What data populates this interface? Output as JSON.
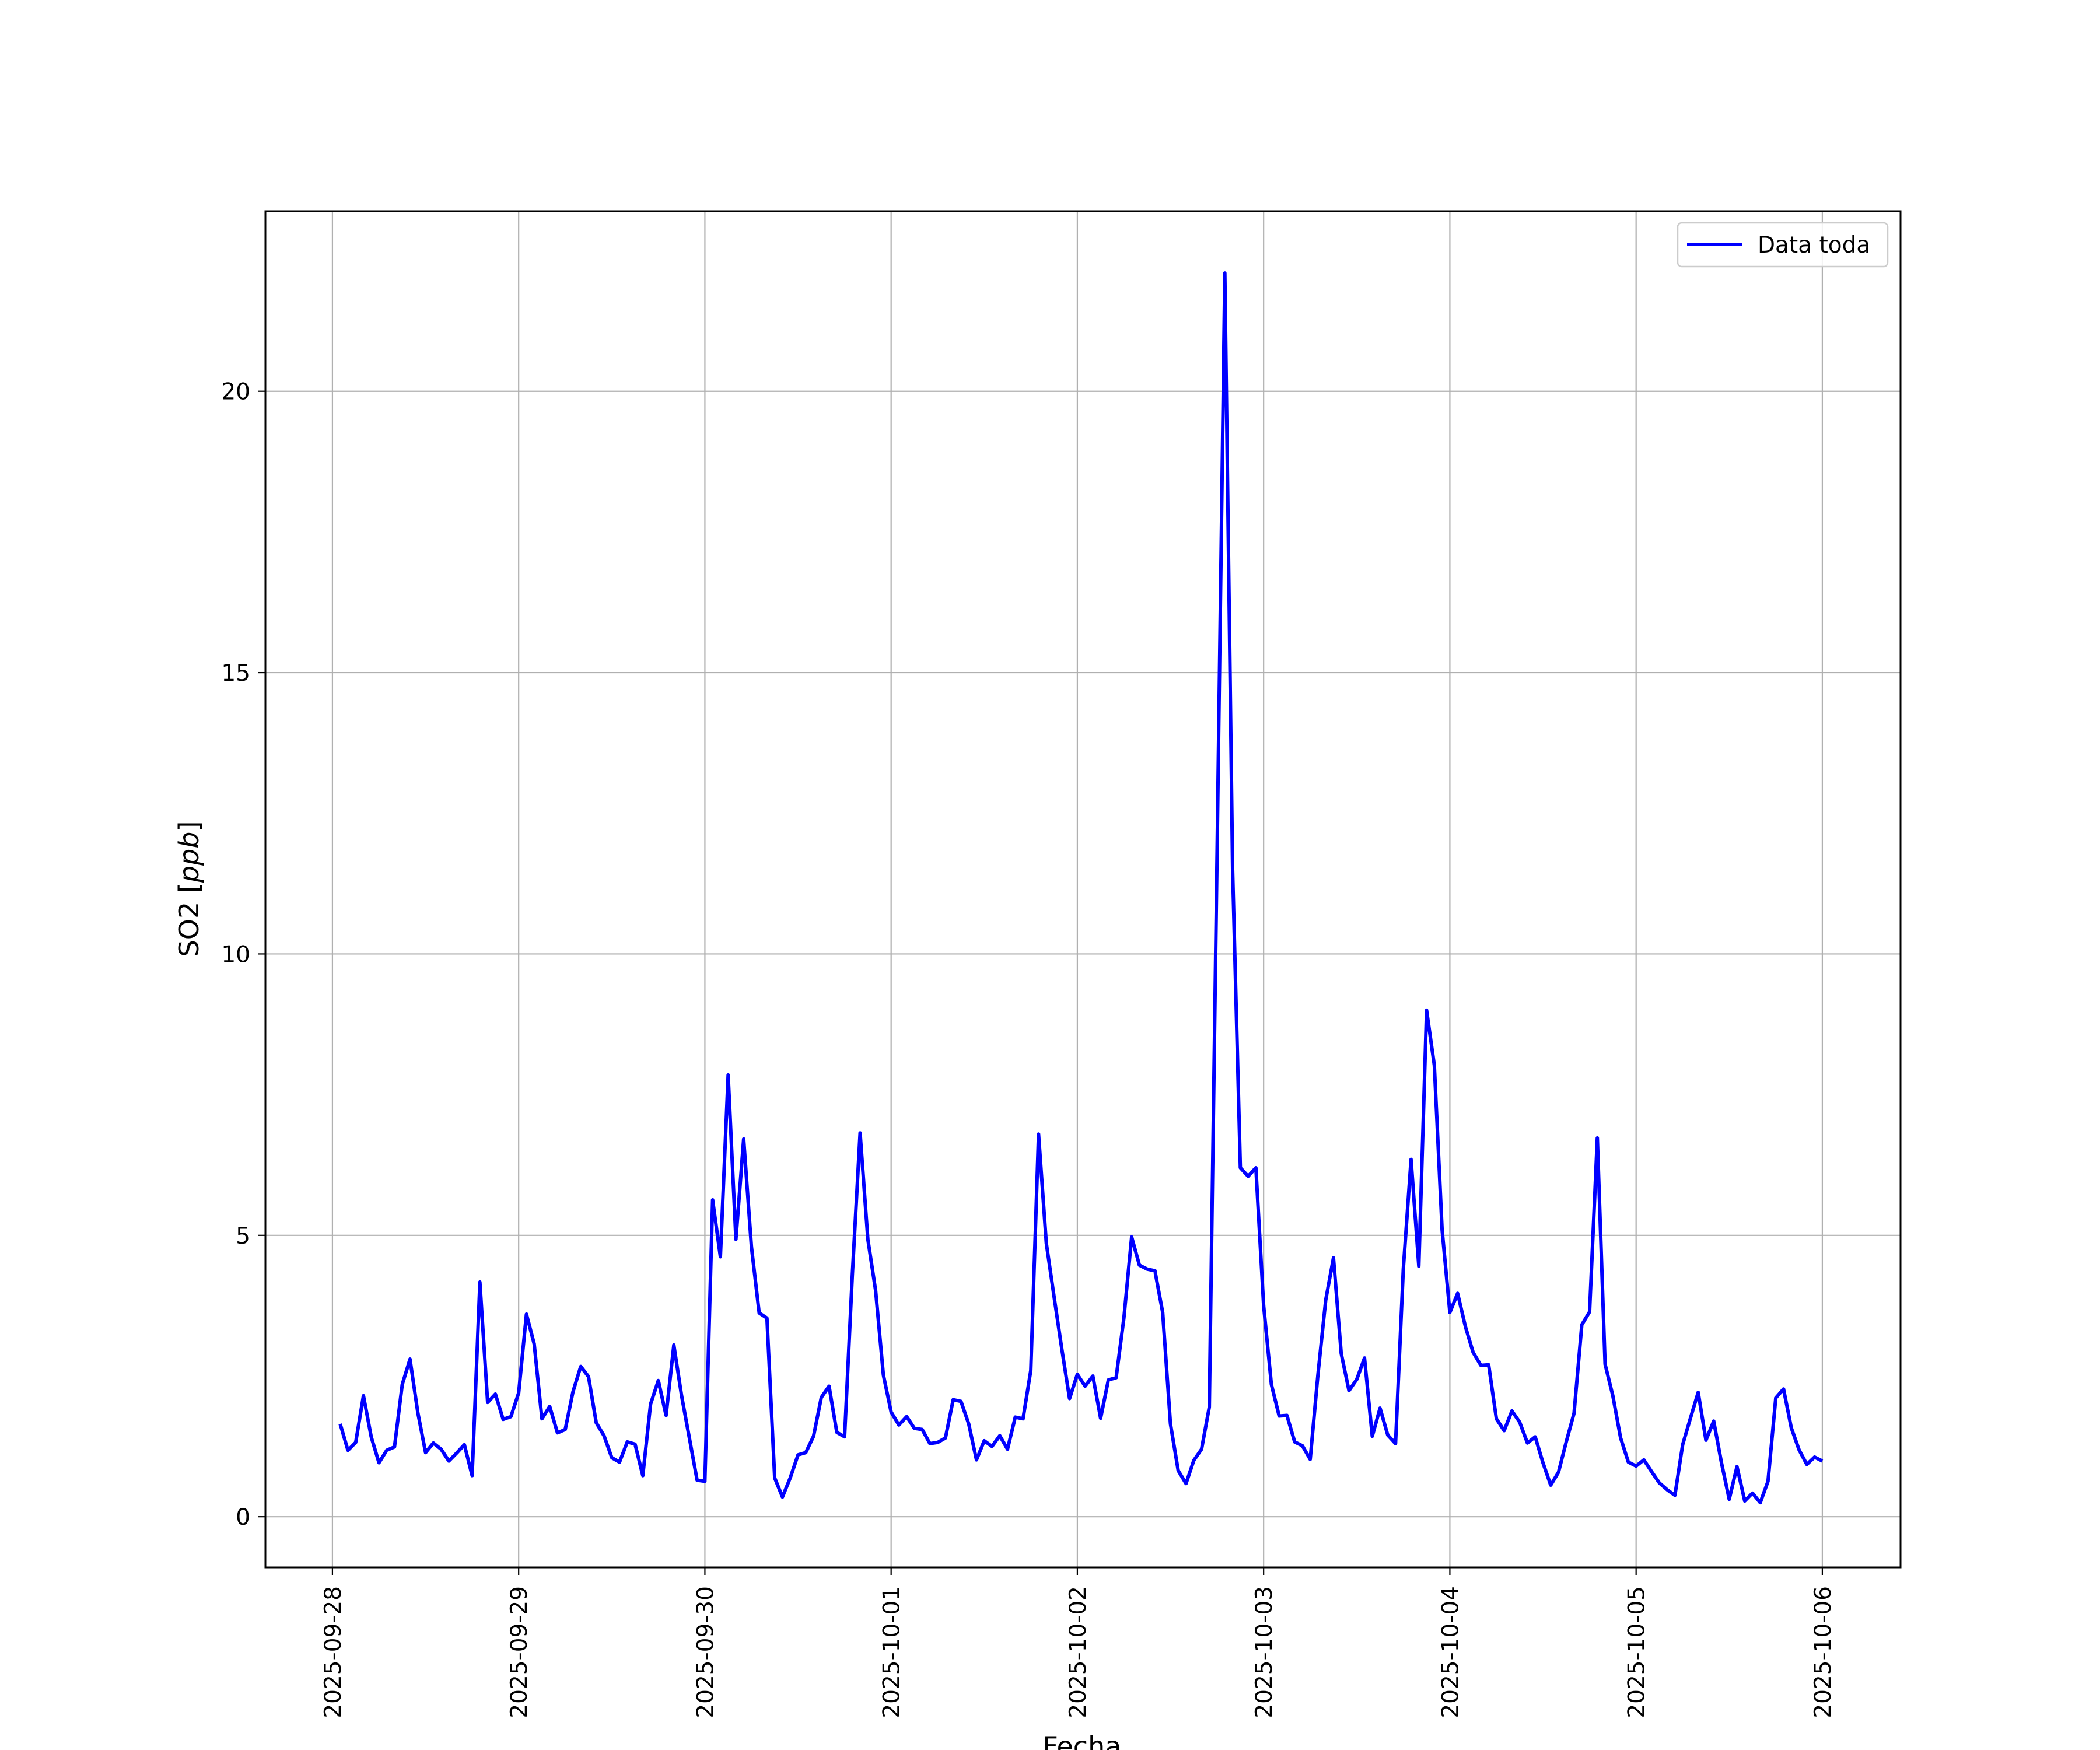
{
  "chart_data": {
    "type": "line",
    "title": "",
    "xlabel": "Fecha",
    "ylabel_text": "SO2 [",
    "ylabel_unit": "ppb",
    "ylabel_close": "]",
    "x_range": [
      "2025-09-27T16:00",
      "2025-10-06T07:00"
    ],
    "xlim": [
      -0.36,
      8.42
    ],
    "ylim": [
      -0.9,
      23.2
    ],
    "x_ticks": [
      {
        "value": 0,
        "label": "2025-09-28"
      },
      {
        "value": 1,
        "label": "2025-09-29"
      },
      {
        "value": 2,
        "label": "2025-09-30"
      },
      {
        "value": 3,
        "label": "2025-10-01"
      },
      {
        "value": 4,
        "label": "2025-10-02"
      },
      {
        "value": 5,
        "label": "2025-10-03"
      },
      {
        "value": 6,
        "label": "2025-10-04"
      },
      {
        "value": 7,
        "label": "2025-10-05"
      },
      {
        "value": 8,
        "label": "2025-10-06"
      }
    ],
    "y_ticks": [
      {
        "value": 0,
        "label": "0"
      },
      {
        "value": 5,
        "label": "5"
      },
      {
        "value": 10,
        "label": "10"
      },
      {
        "value": 15,
        "label": "15"
      },
      {
        "value": 20,
        "label": "20"
      }
    ],
    "grid": true,
    "legend_position": "top-right",
    "colors": {
      "line": "#0000ff",
      "grid": "#b0b0b0",
      "axes": "#000000"
    },
    "series": [
      {
        "name": "Data toda",
        "x_start": "2025-09-28T01:00",
        "x_step_hours": 1,
        "values": [
          1.65,
          1.18,
          1.32,
          2.15,
          1.42,
          0.96,
          1.18,
          1.24,
          2.35,
          2.8,
          1.85,
          1.14,
          1.31,
          1.2,
          0.99,
          1.13,
          1.28,
          0.73,
          4.17,
          2.03,
          2.18,
          1.73,
          1.78,
          2.2,
          3.6,
          3.07,
          1.74,
          1.96,
          1.49,
          1.55,
          2.22,
          2.67,
          2.49,
          1.67,
          1.44,
          1.05,
          0.97,
          1.33,
          1.29,
          0.73,
          2.0,
          2.42,
          1.8,
          3.05,
          2.15,
          1.4,
          0.65,
          0.63,
          5.63,
          4.62,
          7.85,
          4.93,
          6.71,
          4.8,
          3.62,
          3.53,
          0.69,
          0.35,
          0.69,
          1.1,
          1.14,
          1.43,
          2.12,
          2.32,
          1.5,
          1.42,
          4.3,
          6.82,
          4.93,
          4.02,
          2.52,
          1.86,
          1.63,
          1.78,
          1.57,
          1.55,
          1.3,
          1.32,
          1.4,
          2.08,
          2.05,
          1.65,
          1.01,
          1.35,
          1.25,
          1.44,
          1.2,
          1.77,
          1.74,
          2.6,
          6.8,
          4.86,
          3.91,
          2.98,
          2.1,
          2.53,
          2.32,
          2.5,
          1.75,
          2.43,
          2.47,
          3.53,
          4.97,
          4.47,
          4.4,
          4.37,
          3.63,
          1.65,
          0.82,
          0.59,
          1.0,
          1.2,
          1.95,
          11.8,
          22.1,
          11.5,
          6.2,
          6.05,
          6.2,
          3.75,
          2.35,
          1.79,
          1.8,
          1.33,
          1.26,
          1.02,
          2.53,
          3.85,
          4.6,
          2.9,
          2.24,
          2.44,
          2.82,
          1.43,
          1.93,
          1.45,
          1.3,
          4.4,
          6.35,
          4.45,
          9.0,
          8.02,
          5.1,
          3.63,
          3.97,
          3.38,
          2.92,
          2.69,
          2.7,
          1.74,
          1.53,
          1.88,
          1.68,
          1.31,
          1.42,
          0.96,
          0.56,
          0.79,
          1.33,
          1.84,
          3.41,
          3.64,
          6.73,
          2.71,
          2.15,
          1.4,
          0.97,
          0.9,
          1.01,
          0.8,
          0.6,
          0.48,
          0.38,
          1.28,
          1.75,
          2.21,
          1.36,
          1.7,
          0.96,
          0.31,
          0.89,
          0.28,
          0.42,
          0.25,
          0.63,
          2.11,
          2.27,
          1.58,
          1.19,
          0.93,
          1.06,
          0.99
        ]
      }
    ]
  }
}
